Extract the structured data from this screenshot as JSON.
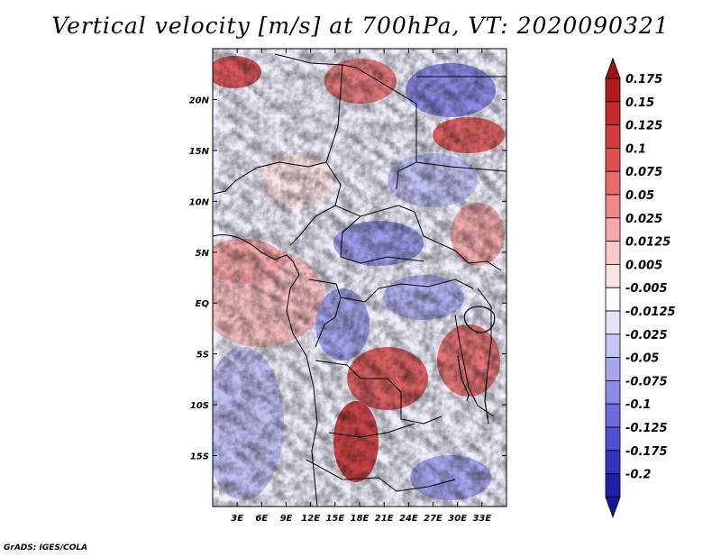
{
  "title": "Vertical velocity [m/s] at 700hPa, VT: 2020090321",
  "credit": "GrADS: IGES/COLA",
  "map": {
    "lon_range": [
      0,
      36
    ],
    "lat_range": [
      -20,
      25
    ],
    "lat_ticks": [
      {
        "value": 20,
        "label": "20N"
      },
      {
        "value": 15,
        "label": "15N"
      },
      {
        "value": 10,
        "label": "10N"
      },
      {
        "value": 5,
        "label": "5N"
      },
      {
        "value": 0,
        "label": "EQ"
      },
      {
        "value": -5,
        "label": "5S"
      },
      {
        "value": -10,
        "label": "10S"
      },
      {
        "value": -15,
        "label": "15S"
      }
    ],
    "lon_ticks": [
      {
        "value": 3,
        "label": "3E"
      },
      {
        "value": 6,
        "label": "6E"
      },
      {
        "value": 9,
        "label": "9E"
      },
      {
        "value": 12,
        "label": "12E"
      },
      {
        "value": 15,
        "label": "15E"
      },
      {
        "value": 18,
        "label": "18E"
      },
      {
        "value": 21,
        "label": "21E"
      },
      {
        "value": 24,
        "label": "24E"
      },
      {
        "value": 27,
        "label": "27E"
      },
      {
        "value": 30,
        "label": "30E"
      },
      {
        "value": 33,
        "label": "33E"
      }
    ]
  },
  "colorbar": {
    "levels": [
      {
        "label": "0.175",
        "color": "#b01c1c"
      },
      {
        "label": "0.15",
        "color": "#c42828"
      },
      {
        "label": "0.125",
        "color": "#d43a3a"
      },
      {
        "label": "0.1",
        "color": "#e05050"
      },
      {
        "label": "0.075",
        "color": "#e86a6a"
      },
      {
        "label": "0.05",
        "color": "#f08a8a"
      },
      {
        "label": "0.025",
        "color": "#f6a8a8"
      },
      {
        "label": "0.0125",
        "color": "#f9c8c8"
      },
      {
        "label": "0.005",
        "color": "#fce4e4"
      },
      {
        "label": "-0.005",
        "color": "#ffffff"
      },
      {
        "label": "-0.0125",
        "color": "#e2e2fb"
      },
      {
        "label": "-0.025",
        "color": "#c6c6f6"
      },
      {
        "label": "-0.05",
        "color": "#a8a8f0"
      },
      {
        "label": "-0.075",
        "color": "#8a8ae8"
      },
      {
        "label": "-0.1",
        "color": "#6c6cde"
      },
      {
        "label": "-0.125",
        "color": "#5050d2"
      },
      {
        "label": "-0.175",
        "color": "#3434c0"
      },
      {
        "label": "-0.2",
        "color": "#2020ac"
      }
    ],
    "top_cap_color": "#a01414",
    "bottom_cap_color": "#14149c"
  }
}
